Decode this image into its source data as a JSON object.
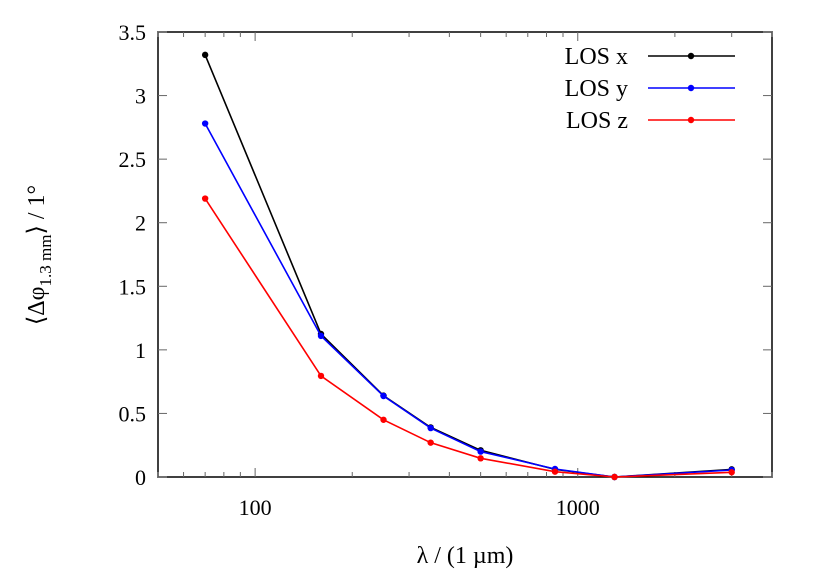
{
  "chart_data": {
    "type": "line",
    "title": "",
    "xlabel": "λ / (1 µm)",
    "ylabel_parts": {
      "open": "⟨Δφ",
      "sub": "1.3 mm",
      "close": "⟩ / 1°"
    },
    "x_scale": "log",
    "xlim": [
      50,
      4000
    ],
    "ylim": [
      0,
      3.5
    ],
    "x_ticks": [
      100,
      1000
    ],
    "x_tick_labels": [
      "100",
      "1000"
    ],
    "y_ticks": [
      0,
      0.5,
      1,
      1.5,
      2,
      2.5,
      3,
      3.5
    ],
    "y_tick_labels": [
      "0",
      "0.5",
      "1",
      "1.5",
      "2",
      "2.5",
      "3",
      "3.5"
    ],
    "grid": false,
    "legend_position": "top-right",
    "x": [
      70,
      160,
      250,
      350,
      500,
      850,
      1300,
      3000
    ],
    "series": [
      {
        "name": "LOS x",
        "color": "#000000",
        "values": [
          3.32,
          1.125,
          0.64,
          0.39,
          0.21,
          0.06,
          0,
          0.06
        ]
      },
      {
        "name": "LOS y",
        "color": "#0000ff",
        "values": [
          2.78,
          1.11,
          0.637,
          0.385,
          0.2,
          0.063,
          0,
          0.055
        ]
      },
      {
        "name": "LOS z",
        "color": "#ff0000",
        "values": [
          2.19,
          0.795,
          0.45,
          0.27,
          0.147,
          0.042,
          0,
          0.037
        ]
      }
    ]
  }
}
